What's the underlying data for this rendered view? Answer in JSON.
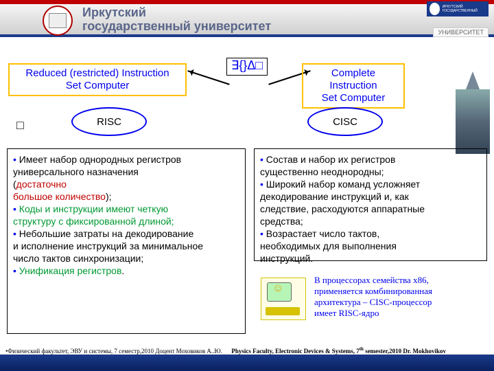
{
  "header": {
    "red_bar_color": "#c00000",
    "blue_bar_color": "#1a3a8a",
    "uni_line1": "Иркутский",
    "uni_line2": "государственный университет",
    "badge_text": "ИРКУТСКИЙ ГОСУДАРСТВЕННЫЙ",
    "uni_label": "УНИВЕРСИТЕТ"
  },
  "titles": {
    "left_l1": "Reduced (restricted) Instruction",
    "left_l2": "Set Computer",
    "right_l1": "Complete Instruction",
    "right_l2": "Set Computer",
    "center_symbols": "∃{}Δ□",
    "border_color": "#ffc000",
    "text_color": "#0000ee"
  },
  "ellipses": {
    "left": "RISC",
    "right": "CISC",
    "border_color": "#0000ee",
    "small_box": "□"
  },
  "risc": {
    "p1_a": " Имеет набор однородных регистров",
    "p1_b": "универсального назначения",
    "p1_c_open": "(",
    "p1_c_red": "достаточно",
    "p1_d_red": "большое количество",
    "p1_d_close": ");",
    "p2_a": " Коды и инструкции имеют четкую",
    "p2_b": "структуру с фиксированной длиной;",
    "p3_a": " Небольшие затраты на декодирование",
    "p3_b": "и исполнение инструкций за минимальное",
    "p3_c": "число тактов синхронизации;",
    "p4_a": " Унификация регистров",
    "p4_b": "."
  },
  "cisc": {
    "p1_a": " Состав и набор их регистров",
    "p1_b": "существенно неоднородны;",
    "p2_a": " Широкий набор команд усложняет",
    "p2_b": "декодирование инструкций и, как",
    "p2_c": "следствие, расходуются аппаратные",
    "p2_d": "средства;",
    "p3_a": " Возрастает число тактов,",
    "p3_b": "необходимых для выполнения",
    "p3_c": "инструкций."
  },
  "note": {
    "l1": "В процессорах семейства x86,",
    "l2": "применяется комбинированная",
    "l3": "архитектура – CISC-процессор",
    "l4": "имеет RISC-ядро"
  },
  "footer": {
    "left": "•Физический факультет, ЭВУ и системы, 7 семестр,2010 Доцент Моховиков А..Ю.",
    "right_a": "Physics Faculty, Electronic Devices & Systems, 7",
    "right_sup": "th",
    "right_b": " semester,2010   Dr. Mokhovikov"
  },
  "colors": {
    "bullet": "#0000ee",
    "red": "#c00000",
    "green": "#009933"
  }
}
